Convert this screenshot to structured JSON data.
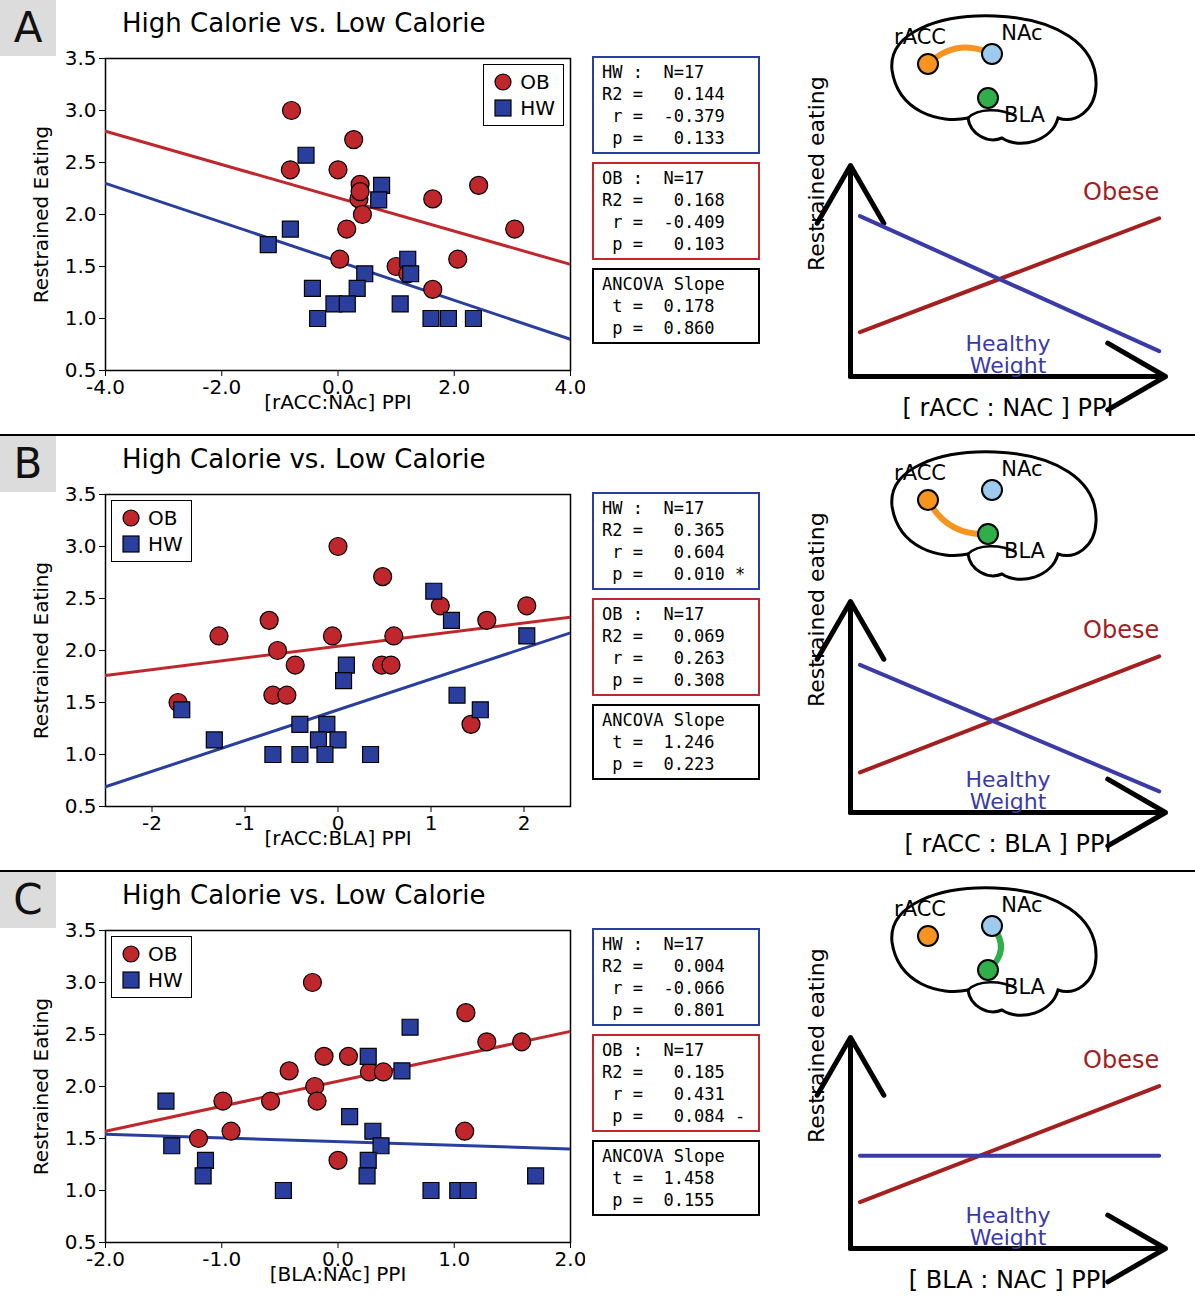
{
  "chart_data": [
    {
      "type": "scatter",
      "panel": "A",
      "title": "High Calorie vs. Low Calorie",
      "x_label": "[rACC:NAc] PPI",
      "y_label": "Restrained Eating",
      "xlim": [
        -4,
        4
      ],
      "ylim": [
        0.5,
        3.5
      ],
      "xticks": [
        {
          "value": -4,
          "label": "-4.0"
        },
        {
          "value": -2,
          "label": "-2.0"
        },
        {
          "value": 0,
          "label": "0.0"
        },
        {
          "value": 2,
          "label": "2.0"
        },
        {
          "value": 4,
          "label": "4.0"
        }
      ],
      "yticks": [
        0.5,
        {
          "value": 1,
          "label": "1.0"
        },
        1.5,
        {
          "value": 2,
          "label": "2.0"
        },
        2.5,
        {
          "value": 3,
          "label": "3.0"
        },
        3.5
      ],
      "legend": "upper right",
      "series": [
        {
          "name": "OB",
          "color": "#c0272d",
          "marker": "circle",
          "x": [
            -0.8,
            -0.82,
            0.27,
            0.0,
            0.38,
            0.36,
            0.42,
            0.15,
            0.03,
            1.0,
            1.63,
            2.42,
            3.04,
            2.06,
            1.63,
            0.38,
            1.2
          ],
          "values": [
            3.0,
            2.43,
            2.72,
            2.43,
            2.29,
            2.15,
            2.0,
            1.86,
            1.57,
            1.5,
            2.15,
            2.28,
            1.86,
            1.57,
            1.28,
            2.22,
            1.43
          ],
          "fit": {
            "x": [
              -4,
              4
            ],
            "values": [
              2.8,
              1.52
            ]
          }
        },
        {
          "name": "HW",
          "color": "#2a3f9d",
          "marker": "square",
          "x": [
            -0.55,
            0.75,
            0.7,
            -1.2,
            -0.82,
            1.2,
            1.25,
            0.46,
            -0.44,
            0.33,
            -0.07,
            0.16,
            1.07,
            -0.35,
            1.6,
            1.9,
            2.33
          ],
          "values": [
            2.57,
            2.28,
            2.14,
            1.71,
            1.86,
            1.57,
            1.43,
            1.43,
            1.29,
            1.29,
            1.14,
            1.14,
            1.14,
            1.0,
            1.0,
            1.0,
            1.0
          ],
          "fit": {
            "x": [
              -4,
              4
            ],
            "values": [
              2.3,
              0.8
            ]
          }
        }
      ],
      "stats": [
        {
          "color": "#2a3f9d",
          "lines": [
            "HW :  N=17",
            "R2 =   0.144",
            " r =  -0.379",
            " p =   0.133"
          ]
        },
        {
          "color": "#c0272d",
          "lines": [
            "OB :  N=17",
            "R2 =   0.168",
            " r =  -0.409",
            " p =   0.103"
          ]
        },
        {
          "color": "#000000",
          "lines": [
            "ANCOVA Slope",
            " t =  0.178",
            " p =  0.860"
          ]
        }
      ]
    },
    {
      "type": "line",
      "x_label": "[ rACC : NAC ] PPI",
      "y_label": "Restrained eating",
      "xlim": [
        0,
        1
      ],
      "ylim": [
        0,
        1
      ],
      "tick_labels": false,
      "x": [
        0.03,
        0.98
      ],
      "series": [
        {
          "name": "Obese",
          "color": "#a3201f",
          "values": [
            0.21,
            0.75
          ]
        },
        {
          "name": "Healthy Weight",
          "color": "#3b3ba8",
          "values": [
            0.76,
            0.12
          ]
        }
      ],
      "regions": [
        {
          "name": "rACC",
          "color": "#f7941d"
        },
        {
          "name": "NAc",
          "color": "#9ccbee"
        },
        {
          "name": "BLA",
          "color": "#2fae4a"
        }
      ],
      "connection": {
        "from": "rACC",
        "to": "NAc",
        "color": "#f7941d"
      }
    },
    {
      "type": "scatter",
      "panel": "B",
      "title": "High Calorie vs. Low Calorie",
      "x_label": "[rACC:BLA] PPI",
      "y_label": "Restrained Eating",
      "xlim": [
        -2.5,
        2.5
      ],
      "ylim": [
        0.5,
        3.5
      ],
      "xticks": [
        -2,
        -1,
        0,
        1,
        2
      ],
      "yticks": [
        0.5,
        {
          "value": 1,
          "label": "1.0"
        },
        1.5,
        {
          "value": 2,
          "label": "2.0"
        },
        2.5,
        {
          "value": 3,
          "label": "3.0"
        },
        3.5
      ],
      "legend": "upper left",
      "series": [
        {
          "name": "OB",
          "color": "#c0272d",
          "marker": "circle",
          "x": [
            0.0,
            0.48,
            -0.74,
            -1.28,
            -0.06,
            0.6,
            -0.65,
            -0.46,
            0.47,
            0.57,
            -0.7,
            -0.55,
            1.1,
            1.6,
            2.03,
            -1.72,
            1.43
          ],
          "values": [
            3.0,
            2.71,
            2.29,
            2.14,
            2.14,
            2.14,
            2.0,
            1.86,
            1.86,
            1.86,
            1.57,
            1.57,
            2.43,
            2.29,
            2.43,
            1.5,
            1.29
          ],
          "fit": {
            "x": [
              -2.5,
              2.5
            ],
            "values": [
              1.76,
              2.32
            ]
          }
        },
        {
          "name": "HW",
          "color": "#2a3f9d",
          "marker": "square",
          "x": [
            1.03,
            1.22,
            2.03,
            1.28,
            1.53,
            -1.68,
            -1.33,
            0.09,
            0.06,
            -0.41,
            -0.12,
            -0.21,
            0.0,
            -0.7,
            -0.41,
            -0.14,
            0.35
          ],
          "values": [
            2.57,
            2.29,
            2.14,
            1.57,
            1.43,
            1.43,
            1.14,
            1.86,
            1.71,
            1.29,
            1.29,
            1.14,
            1.14,
            1.0,
            1.0,
            1.0,
            1.0
          ],
          "fit": {
            "x": [
              -2.5,
              2.5
            ],
            "values": [
              0.69,
              2.17
            ]
          }
        }
      ],
      "stats": [
        {
          "color": "#2a3f9d",
          "lines": [
            "HW :  N=17",
            "R2 =   0.365",
            " r =   0.604",
            " p =   0.010 *"
          ]
        },
        {
          "color": "#c0272d",
          "lines": [
            "OB :  N=17",
            "R2 =   0.069",
            " r =   0.263",
            " p =   0.308"
          ]
        },
        {
          "color": "#000000",
          "lines": [
            "ANCOVA Slope",
            " t =  1.246",
            " p =  0.223"
          ]
        }
      ]
    },
    {
      "type": "line",
      "x_label": "[ rACC : BLA ] PPI",
      "y_label": "Restrained eating",
      "xlim": [
        0,
        1
      ],
      "ylim": [
        0,
        1
      ],
      "tick_labels": false,
      "x": [
        0.03,
        0.98
      ],
      "series": [
        {
          "name": "Obese",
          "color": "#a3201f",
          "values": [
            0.19,
            0.74
          ]
        },
        {
          "name": "Healthy Weight",
          "color": "#3b3ba8",
          "values": [
            0.7,
            0.1
          ]
        }
      ],
      "regions": [
        {
          "name": "rACC",
          "color": "#f7941d"
        },
        {
          "name": "NAc",
          "color": "#9ccbee"
        },
        {
          "name": "BLA",
          "color": "#2fae4a"
        }
      ],
      "connection": {
        "from": "rACC",
        "to": "BLA",
        "color": "#f7941d"
      }
    },
    {
      "type": "scatter",
      "panel": "C",
      "title": "High Calorie vs. Low Calorie",
      "x_label": "[BLA:NAc] PPI",
      "y_label": "Restrained Eating",
      "xlim": [
        -2,
        2
      ],
      "ylim": [
        0.5,
        3.5
      ],
      "xticks": [
        {
          "value": -2,
          "label": "-2.0"
        },
        {
          "value": -1,
          "label": "-1.0"
        },
        {
          "value": 0,
          "label": "0.0"
        },
        {
          "value": 1,
          "label": "1.0"
        },
        {
          "value": 2,
          "label": "2.0"
        }
      ],
      "yticks": [
        0.5,
        {
          "value": 1,
          "label": "1.0"
        },
        1.5,
        {
          "value": 2,
          "label": "2.0"
        },
        2.5,
        {
          "value": 3,
          "label": "3.0"
        },
        3.5
      ],
      "legend": "upper left",
      "series": [
        {
          "name": "OB",
          "color": "#c0272d",
          "marker": "circle",
          "x": [
            -0.22,
            1.1,
            1.28,
            1.58,
            -0.12,
            0.09,
            -0.42,
            0.27,
            0.39,
            -0.2,
            -0.99,
            -0.58,
            -0.18,
            -0.92,
            1.09,
            -1.2,
            0.0
          ],
          "values": [
            3.0,
            2.71,
            2.43,
            2.43,
            2.29,
            2.29,
            2.15,
            2.14,
            2.14,
            2.0,
            1.86,
            1.86,
            1.86,
            1.57,
            1.57,
            1.5,
            1.29
          ],
          "fit": {
            "x": [
              -2,
              2
            ],
            "values": [
              1.57,
              2.53
            ]
          }
        },
        {
          "name": "HW",
          "color": "#2a3f9d",
          "marker": "square",
          "x": [
            -1.48,
            0.62,
            0.26,
            0.55,
            0.1,
            0.3,
            0.37,
            -1.43,
            -1.14,
            0.26,
            -1.16,
            0.25,
            1.7,
            -0.47,
            0.8,
            1.03,
            1.12
          ],
          "values": [
            1.86,
            2.57,
            2.29,
            2.15,
            1.71,
            1.57,
            1.43,
            1.43,
            1.29,
            1.29,
            1.14,
            1.14,
            1.14,
            1.0,
            1.0,
            1.0,
            1.0
          ],
          "fit": {
            "x": [
              -2,
              2
            ],
            "values": [
              1.54,
              1.4
            ]
          }
        }
      ],
      "stats": [
        {
          "color": "#2a3f9d",
          "lines": [
            "HW :  N=17",
            "R2 =   0.004",
            " r =  -0.066",
            " p =   0.801"
          ]
        },
        {
          "color": "#c0272d",
          "lines": [
            "OB :  N=17",
            "R2 =   0.185",
            " r =   0.431",
            " p =   0.084 -"
          ]
        },
        {
          "color": "#000000",
          "lines": [
            "ANCOVA Slope",
            " t =  1.458",
            " p =  0.155"
          ]
        }
      ]
    },
    {
      "type": "line",
      "x_label": "[ BLA : NAC ] PPI",
      "y_label": "Restrained eating",
      "xlim": [
        0,
        1
      ],
      "ylim": [
        0,
        1
      ],
      "tick_labels": false,
      "x": [
        0.03,
        0.98
      ],
      "series": [
        {
          "name": "Obese",
          "color": "#a3201f",
          "values": [
            0.22,
            0.77
          ]
        },
        {
          "name": "Healthy Weight",
          "color": "#3b3ba8",
          "values": [
            0.44,
            0.44
          ]
        }
      ],
      "regions": [
        {
          "name": "rACC",
          "color": "#f7941d"
        },
        {
          "name": "NAc",
          "color": "#9ccbee"
        },
        {
          "name": "BLA",
          "color": "#2fae4a"
        }
      ],
      "connection": {
        "from": "BLA",
        "to": "NAc",
        "color": "#2fae4a"
      }
    }
  ]
}
